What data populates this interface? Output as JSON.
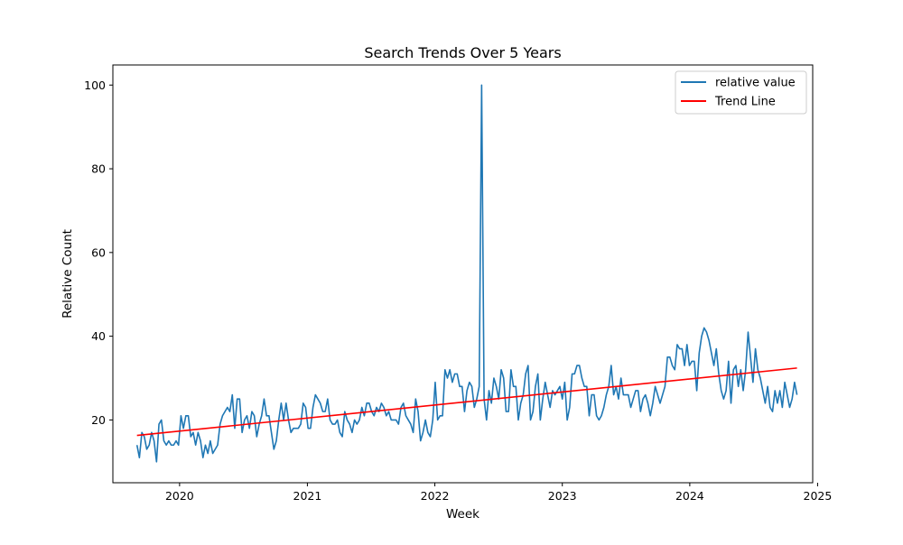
{
  "chart_data": {
    "type": "line",
    "title": "Search Trends Over 5 Years",
    "xlabel": "Week",
    "ylabel": "Relative Count",
    "xlim": [
      "2019-06-24",
      "2024-12-18"
    ],
    "ylim": [
      5,
      104.8
    ],
    "x_ticks": [
      {
        "date": "2020-01-01",
        "label": "2020"
      },
      {
        "date": "2021-01-01",
        "label": "2021"
      },
      {
        "date": "2022-01-01",
        "label": "2022"
      },
      {
        "date": "2023-01-01",
        "label": "2023"
      },
      {
        "date": "2024-01-01",
        "label": "2024"
      },
      {
        "date": "2025-01-01",
        "label": "2025"
      }
    ],
    "y_ticks": [
      20,
      40,
      60,
      80,
      100
    ],
    "grid": false,
    "legend": {
      "placement": "top-right"
    },
    "start_date": "2019-09-01",
    "frequency": "weekly",
    "series": [
      {
        "name": "relative value",
        "kind": "data",
        "color": "#1f77b4",
        "values": [
          14,
          11,
          17,
          16,
          13,
          14,
          17,
          15,
          10,
          19,
          20,
          15,
          14,
          15,
          14,
          14,
          15,
          14,
          21,
          18,
          21,
          21,
          16,
          17,
          14,
          17,
          15,
          11,
          14,
          12,
          15,
          12,
          13,
          14,
          19,
          21,
          22,
          23,
          22,
          26,
          18,
          25,
          25,
          17,
          20,
          21,
          18,
          22,
          21,
          16,
          19,
          21,
          25,
          21,
          21,
          17,
          13,
          15,
          20,
          24,
          20,
          24,
          20,
          17,
          18,
          18,
          18,
          19,
          24,
          23,
          18,
          18,
          23,
          26,
          25,
          24,
          22,
          22,
          25,
          20,
          19,
          19,
          20,
          17,
          16,
          22,
          20,
          19,
          17,
          20,
          19,
          20,
          23,
          21,
          24,
          24,
          22,
          21,
          23,
          22,
          24,
          23,
          21,
          22,
          20,
          20,
          20,
          19,
          23,
          24,
          21,
          20,
          19,
          17,
          25,
          22,
          15,
          17,
          20,
          17,
          16,
          20,
          29,
          20,
          21,
          21,
          32,
          30,
          32,
          29,
          31,
          31,
          28,
          28,
          22,
          27,
          29,
          28,
          23,
          25,
          28,
          100,
          25,
          20,
          27,
          24,
          30,
          28,
          25,
          32,
          30,
          22,
          22,
          32,
          28,
          28,
          20,
          24,
          26,
          31,
          33,
          20,
          22,
          28,
          31,
          20,
          25,
          29,
          26,
          23,
          27,
          26,
          27,
          28,
          25,
          29,
          20,
          23,
          31,
          31,
          33,
          33,
          30,
          28,
          28,
          21,
          26,
          26,
          21,
          20,
          21,
          23,
          26,
          28,
          33,
          26,
          28,
          25,
          30,
          26,
          26,
          26,
          23,
          25,
          27,
          27,
          22,
          25,
          26,
          24,
          21,
          24,
          28,
          26,
          24,
          26,
          28,
          35,
          35,
          33,
          32,
          38,
          37,
          37,
          33,
          38,
          33,
          34,
          34,
          27,
          36,
          40,
          42,
          41,
          39,
          36,
          33,
          37,
          31,
          27,
          25,
          27,
          34,
          24,
          32,
          33,
          28,
          32,
          27,
          32,
          41,
          35,
          29,
          37,
          32,
          30,
          27,
          24,
          28,
          23,
          22,
          27,
          24,
          27,
          23,
          29,
          26,
          23,
          25,
          29,
          26
        ]
      },
      {
        "name": "Trend Line",
        "kind": "trend",
        "color": "#ff0000",
        "start": 16.3,
        "end": 32.4
      }
    ]
  }
}
